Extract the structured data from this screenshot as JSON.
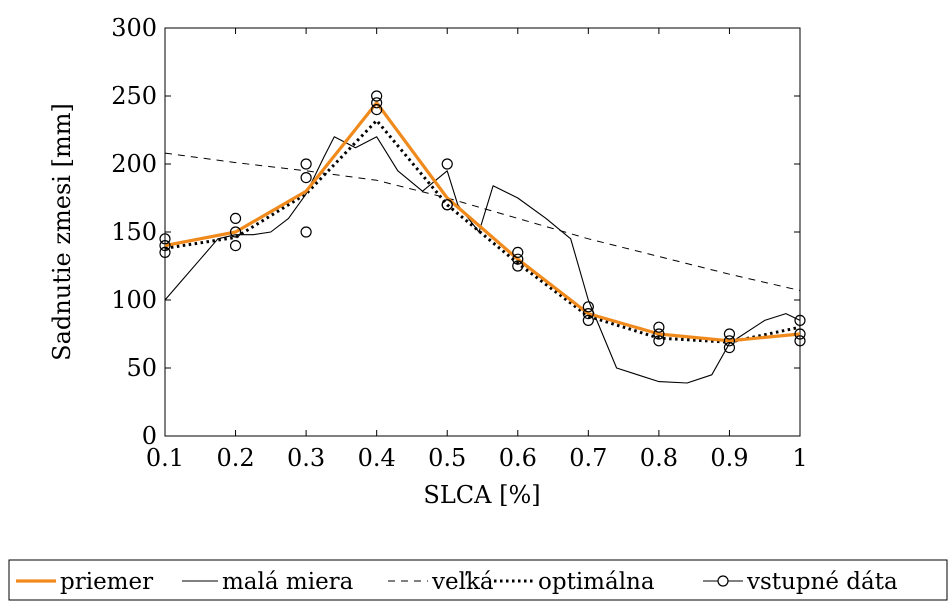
{
  "chart_data": {
    "type": "line",
    "xlabel": "SLCA [%]",
    "ylabel": "Sadnutie zmesi [mm]",
    "xlim": [
      0.1,
      1.0
    ],
    "ylim": [
      0,
      300
    ],
    "xticks": [
      "0.1",
      "0.2",
      "0.3",
      "0.4",
      "0.5",
      "0.6",
      "0.7",
      "0.8",
      "0.9",
      "1"
    ],
    "yticks": [
      "0",
      "50",
      "100",
      "150",
      "200",
      "250",
      "300"
    ],
    "grid": false,
    "legend_position": "bottom",
    "series": [
      {
        "name": "priemer",
        "style": "solid-thick",
        "color": "#f08a1c",
        "x": [
          0.1,
          0.2,
          0.3,
          0.4,
          0.5,
          0.6,
          0.7,
          0.8,
          0.9,
          1.0
        ],
        "y": [
          140,
          150,
          180,
          245,
          175,
          130,
          90,
          75,
          70,
          75
        ]
      },
      {
        "name": "malá miera",
        "style": "solid-thin",
        "color": "#000000",
        "x": [
          0.1,
          0.125,
          0.15,
          0.175,
          0.2,
          0.225,
          0.25,
          0.275,
          0.3,
          0.325,
          0.34,
          0.37,
          0.4,
          0.43,
          0.465,
          0.5,
          0.515,
          0.545,
          0.565,
          0.6,
          0.64,
          0.675,
          0.7,
          0.74,
          0.77,
          0.8,
          0.84,
          0.875,
          0.9,
          0.95,
          0.98,
          1.0
        ],
        "y": [
          100,
          115,
          130,
          145,
          148,
          148,
          150,
          160,
          178,
          205,
          220,
          212,
          220,
          195,
          180,
          195,
          170,
          150,
          184,
          175,
          160,
          145,
          100,
          50,
          45,
          40,
          39,
          45,
          68,
          85,
          90,
          85
        ]
      },
      {
        "name": "veľká",
        "style": "dashed",
        "color": "#000000",
        "x": [
          0.1,
          0.2,
          0.3,
          0.4,
          0.5,
          0.6,
          0.7,
          0.8,
          0.9,
          1.0
        ],
        "y": [
          208,
          201,
          195,
          188,
          175,
          160,
          145,
          132,
          119,
          107
        ]
      },
      {
        "name": "optimálna",
        "style": "dotted",
        "color": "#000000",
        "x": [
          0.1,
          0.2,
          0.3,
          0.4,
          0.5,
          0.6,
          0.7,
          0.8,
          0.9,
          1.0
        ],
        "y": [
          138,
          146,
          178,
          232,
          170,
          127,
          88,
          72,
          69,
          80
        ]
      },
      {
        "name": "vstupné dáta",
        "style": "markers",
        "color": "#000000",
        "x": [
          0.1,
          0.1,
          0.1,
          0.2,
          0.2,
          0.2,
          0.3,
          0.3,
          0.3,
          0.4,
          0.4,
          0.4,
          0.5,
          0.5,
          0.5,
          0.6,
          0.6,
          0.6,
          0.7,
          0.7,
          0.7,
          0.8,
          0.8,
          0.8,
          0.9,
          0.9,
          0.9,
          1.0,
          1.0,
          1.0
        ],
        "y": [
          135,
          140,
          145,
          140,
          150,
          160,
          150,
          190,
          200,
          240,
          245,
          250,
          170,
          170,
          200,
          125,
          130,
          135,
          85,
          90,
          95,
          70,
          75,
          80,
          65,
          70,
          75,
          70,
          75,
          85
        ]
      }
    ]
  }
}
